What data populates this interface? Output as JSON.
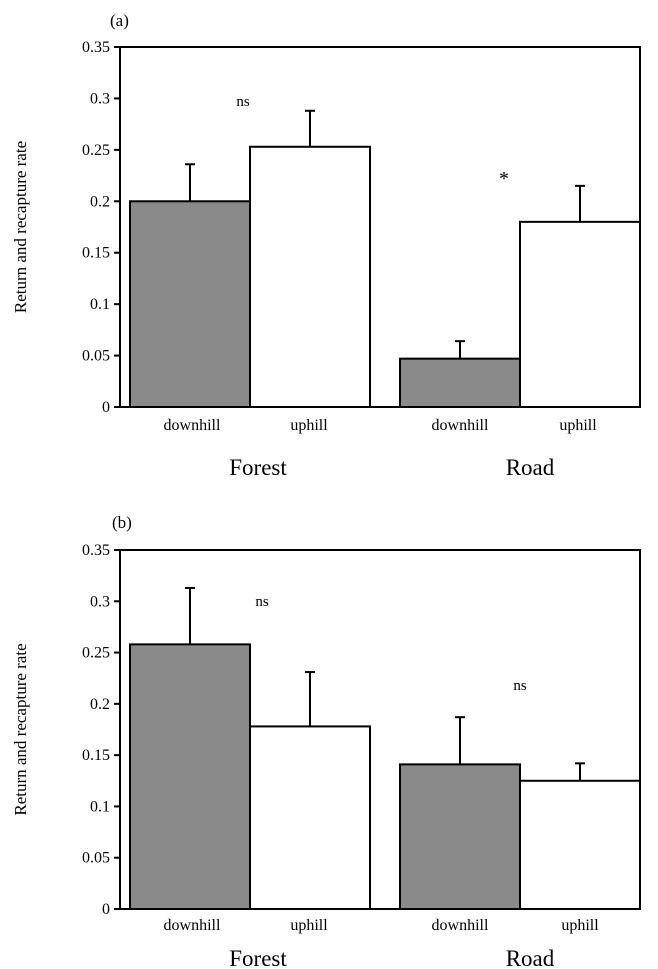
{
  "chart_data": [
    {
      "type": "bar",
      "panel_label": "(a)",
      "ylabel": "Return and recapture rate",
      "ylim": [
        0,
        0.35
      ],
      "yticks": [
        "0",
        "0.05",
        "0.1",
        "0.15",
        "0.2",
        "0.25",
        "0.3",
        "0.35"
      ],
      "groups": [
        "Forest",
        "Road"
      ],
      "categories": [
        "downhill",
        "uphill",
        "downhill",
        "uphill"
      ],
      "values": [
        0.2,
        0.253,
        0.047,
        0.18
      ],
      "errors": [
        0.036,
        0.035,
        0.017,
        0.035
      ],
      "fill": [
        "#8a8a8a",
        "#ffffff",
        "#8a8a8a",
        "#ffffff"
      ],
      "annotations": [
        "ns",
        "*"
      ],
      "grid": false
    },
    {
      "type": "bar",
      "panel_label": "(b)",
      "ylabel": "Return and recapture rate",
      "ylim": [
        0,
        0.35
      ],
      "yticks": [
        "0",
        "0.05",
        "0.1",
        "0.15",
        "0.2",
        "0.25",
        "0.3",
        "0.35"
      ],
      "groups": [
        "Forest",
        "Road"
      ],
      "categories": [
        "downhill",
        "uphill",
        "downhill",
        "uphill"
      ],
      "values": [
        0.258,
        0.178,
        0.141,
        0.125
      ],
      "errors": [
        0.055,
        0.053,
        0.046,
        0.017
      ],
      "fill": [
        "#8a8a8a",
        "#ffffff",
        "#8a8a8a",
        "#ffffff"
      ],
      "annotations": [
        "ns",
        "ns"
      ],
      "grid": false
    }
  ]
}
